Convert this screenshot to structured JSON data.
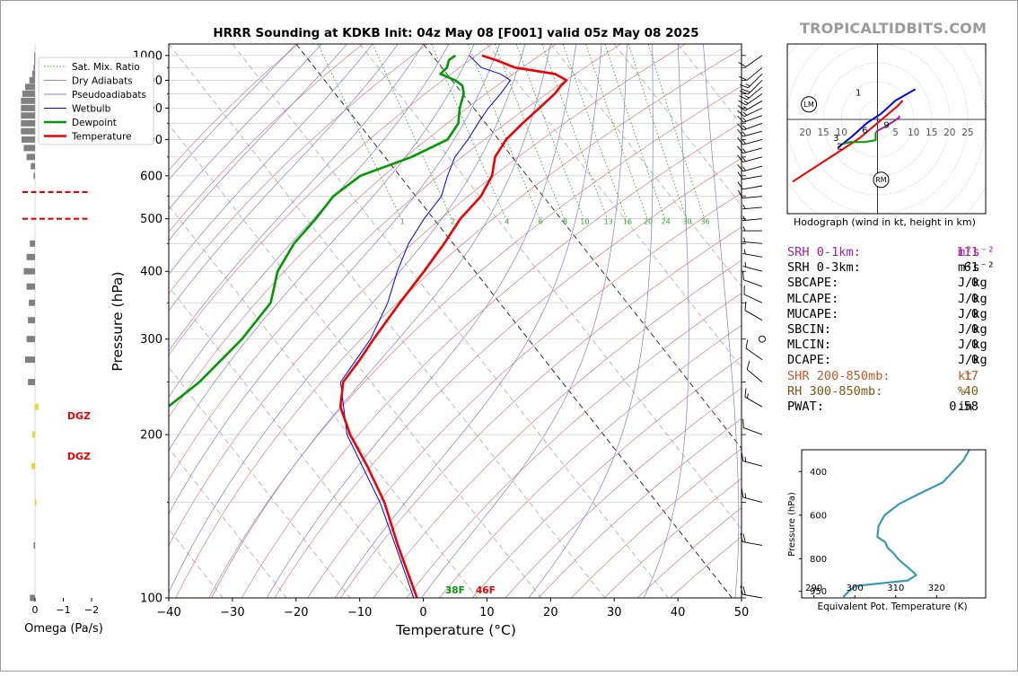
{
  "header": {
    "title": "HRRR Sounding at KDKB Init: 04z May 08 [F001] valid 05z May 08 2025",
    "site": "TROPICALTIDBITS.COM"
  },
  "colors": {
    "temperature": "#ee0000",
    "dewpoint": "#009900",
    "wetbulb": "#0000ee",
    "dry_adiabat": "#d08080",
    "moist_adiabat": "#8080c8",
    "mixing_ratio": "#33a033",
    "theta_e": "#3a9ab0",
    "srh": "#a020a0",
    "shear": "#c05a28",
    "rh": "#7a5a14",
    "dgz": "#ee0000",
    "omega_bar": "#808080",
    "omega_highlight": "#f2d230",
    "label_gray": "#9a9a9a"
  },
  "legend": {
    "items": [
      {
        "label": "Sat. Mix. Ratio",
        "style": "dotted",
        "color": "#33a033"
      },
      {
        "label": "Dry Adiabats",
        "style": "thin",
        "color": "#d08080"
      },
      {
        "label": "Pseudoadiabats",
        "style": "thin",
        "color": "#8080c8"
      },
      {
        "label": "Wetbulb",
        "style": "thin",
        "color": "#0000ee"
      },
      {
        "label": "Dewpoint",
        "style": "thick",
        "color": "#009900"
      },
      {
        "label": "Temperature",
        "style": "thick",
        "color": "#ee0000"
      }
    ]
  },
  "surface": {
    "dewpoint_label": "38F",
    "temperature_label": "46F"
  },
  "omega_panel": {
    "xlabel": "Omega (Pa/s)",
    "ticks": [
      "0",
      "−1",
      "−2"
    ],
    "dgz_label": "DGZ",
    "dgz_levels_hpa": [
      500,
      560
    ]
  },
  "hodograph": {
    "caption": "Hodograph (wind in kt, height in km)",
    "ring_labels_left": [
      "20",
      "15",
      "10"
    ],
    "ring_labels_right": [
      "5",
      "10",
      "15",
      "20",
      "25"
    ],
    "motion_labels": {
      "left": "LM",
      "right": "RM"
    },
    "height_labels": [
      "1",
      "3",
      "2",
      "6",
      "9"
    ]
  },
  "params": [
    {
      "label": "SRH 0-1km:",
      "value": "111",
      "unit": "m²s⁻²",
      "color": "#a020a0"
    },
    {
      "label": "SRH 0-3km:",
      "value": "61",
      "unit": "m²s⁻²",
      "color": "#000000"
    },
    {
      "label": "SBCAPE:",
      "value": "0",
      "unit": "J/kg",
      "color": "#000000"
    },
    {
      "label": "MLCAPE:",
      "value": "0",
      "unit": "J/kg",
      "color": "#000000"
    },
    {
      "label": "MUCAPE:",
      "value": "0",
      "unit": "J/kg",
      "color": "#000000"
    },
    {
      "label": "SBCIN:",
      "value": "0",
      "unit": "J/kg",
      "color": "#000000"
    },
    {
      "label": "MLCIN:",
      "value": "0",
      "unit": "J/kg",
      "color": "#000000"
    },
    {
      "label": "DCAPE:",
      "value": "0",
      "unit": "J/kg",
      "color": "#000000"
    },
    {
      "label": "SHR 200-850mb:",
      "value": "17",
      "unit": "kt",
      "color": "#c05a28"
    },
    {
      "label": "RH 300-850mb:",
      "value": "40",
      "unit": "%",
      "color": "#7a5a14"
    },
    {
      "label": "PWAT:",
      "value": "0.58",
      "unit": "in",
      "color": "#000000"
    }
  ],
  "chart_data": [
    {
      "type": "line",
      "name": "skewt",
      "xlabel": "Temperature (°C)",
      "ylabel": "Pressure (hPa)",
      "xlim": [
        -40,
        50
      ],
      "ylim": [
        1050,
        100
      ],
      "y_scale": "log",
      "x_ticks": [
        -40,
        -30,
        -20,
        -10,
        0,
        10,
        20,
        30,
        40,
        50
      ],
      "x_tick_labels": [
        "−40",
        "−30",
        "−20",
        "−10",
        "0",
        "10",
        "20",
        "30",
        "40",
        "50"
      ],
      "y_ticks": [
        1000,
        900,
        800,
        700,
        600,
        500,
        400,
        300,
        200,
        100
      ],
      "isobars": [
        1000,
        950,
        900,
        850,
        800,
        750,
        700,
        650,
        600,
        550,
        500,
        450,
        400,
        350,
        300,
        250,
        200,
        150,
        100
      ],
      "mixing_ratio_labels": [
        "1",
        "2",
        "4",
        "6",
        "8",
        "10",
        "13",
        "16",
        "20",
        "24",
        "30",
        "36"
      ],
      "series": [
        {
          "name": "Temperature",
          "pressure": [
            1000,
            980,
            950,
            925,
            900,
            880,
            850,
            800,
            750,
            700,
            650,
            600,
            550,
            500,
            450,
            400,
            350,
            300,
            275,
            250,
            225,
            200,
            175,
            150,
            125,
            100
          ],
          "values": [
            7.8,
            9.5,
            11.5,
            17.0,
            18.0,
            16.5,
            14.5,
            10.3,
            5.8,
            1.2,
            -2.7,
            -5.5,
            -9.8,
            -15.8,
            -21.4,
            -28.0,
            -35.7,
            -44.3,
            -49.0,
            -54.4,
            -57.9,
            -59.8,
            -61.0,
            -62.8,
            -66.0,
            -69.5
          ]
        },
        {
          "name": "Dewpoint",
          "pressure": [
            1000,
            980,
            950,
            925,
            900,
            880,
            850,
            800,
            750,
            700,
            650,
            600,
            550,
            500,
            450,
            400,
            350,
            300,
            250,
            225,
            200,
            175,
            150,
            125,
            100
          ],
          "values": [
            3.6,
            2.0,
            0.8,
            -1.0,
            0.5,
            1.0,
            0.2,
            -2.2,
            -4.3,
            -8.0,
            -15.8,
            -26.2,
            -33.0,
            -38.5,
            -45.0,
            -51.0,
            -56.0,
            -65.0,
            -77.0,
            -85.0,
            -91.0,
            -100.5,
            -109.5,
            -111.5,
            -111.0
          ]
        },
        {
          "name": "Wetbulb",
          "pressure": [
            1000,
            950,
            925,
            900,
            850,
            800,
            750,
            700,
            650,
            600,
            550,
            500,
            450,
            400,
            350,
            300,
            250,
            200,
            150,
            125,
            100
          ],
          "values": [
            5.8,
            6.2,
            8.4,
            9.2,
            6.0,
            2.3,
            -1.2,
            -4.8,
            -9.0,
            -12.5,
            -16.0,
            -21.5,
            -27.0,
            -32.2,
            -37.6,
            -44.8,
            -54.8,
            -60.3,
            -63.5,
            -66.4,
            -70.0
          ]
        }
      ]
    },
    {
      "type": "line",
      "name": "equivalent_potential_temperature",
      "xlabel": "Equivalent Pot. Temperature (K)",
      "ylabel": "Pressure (hPa)",
      "xlim": [
        287,
        332
      ],
      "ylim": [
        980,
        300
      ],
      "x_ticks": [
        290,
        300,
        310,
        320
      ],
      "y_ticks": [
        400,
        600,
        800,
        950
      ],
      "y_tick_labels": [
        "400",
        "600",
        "800",
        "950"
      ],
      "x_tick_labels": [
        "290",
        "300",
        "310",
        "320"
      ],
      "series": [
        {
          "name": "Theta-e",
          "pressure": [
            975,
            950,
            925,
            900,
            875,
            850,
            825,
            800,
            775,
            750,
            725,
            700,
            650,
            600,
            550,
            500,
            450,
            400,
            350,
            300
          ],
          "values": [
            297.2,
            298.5,
            300.2,
            313.0,
            315.0,
            313.6,
            312.0,
            310.5,
            309.5,
            308.0,
            307.5,
            305.5,
            305.8,
            307.3,
            310.7,
            316.0,
            321.5,
            324.0,
            326.5,
            328.0
          ]
        }
      ]
    },
    {
      "type": "scatter",
      "name": "hodograph",
      "units": "kt",
      "xlim": [
        -25,
        30
      ],
      "ylim": [
        -25,
        20
      ],
      "series": [
        {
          "name": "0-1 km",
          "color": "#ee0000",
          "u": [
            -23.5,
            -13.0,
            -5.0,
            5.5,
            7.0
          ],
          "v": [
            -16.5,
            -10.0,
            -5.0,
            3.5,
            5.0
          ]
        },
        {
          "name": "1-3 km",
          "color": "#0000ee",
          "u": [
            -11.0,
            -7.0,
            -3.0,
            1.0,
            5.0,
            10.5
          ],
          "v": [
            -7.5,
            -4.5,
            -1.0,
            1.5,
            5.0,
            8.0
          ]
        },
        {
          "name": "3-6 km",
          "color": "#009900",
          "u": [
            -9.5,
            -7.5,
            -3.5,
            -0.5,
            -0.5
          ],
          "v": [
            -6.5,
            -6.0,
            -6.0,
            -5.5,
            -3.5
          ]
        },
        {
          "name": "6-9 km",
          "color": "#a020a0",
          "u": [
            -0.5,
            0.0,
            2.0,
            4.5,
            6.0,
            6.0
          ],
          "v": [
            -3.5,
            -3.0,
            -2.0,
            -0.5,
            0.5,
            1.0
          ]
        }
      ],
      "storm_motion": {
        "left": [
          -19.0,
          4.0
        ],
        "right": [
          1.0,
          -16.0
        ]
      }
    }
  ]
}
